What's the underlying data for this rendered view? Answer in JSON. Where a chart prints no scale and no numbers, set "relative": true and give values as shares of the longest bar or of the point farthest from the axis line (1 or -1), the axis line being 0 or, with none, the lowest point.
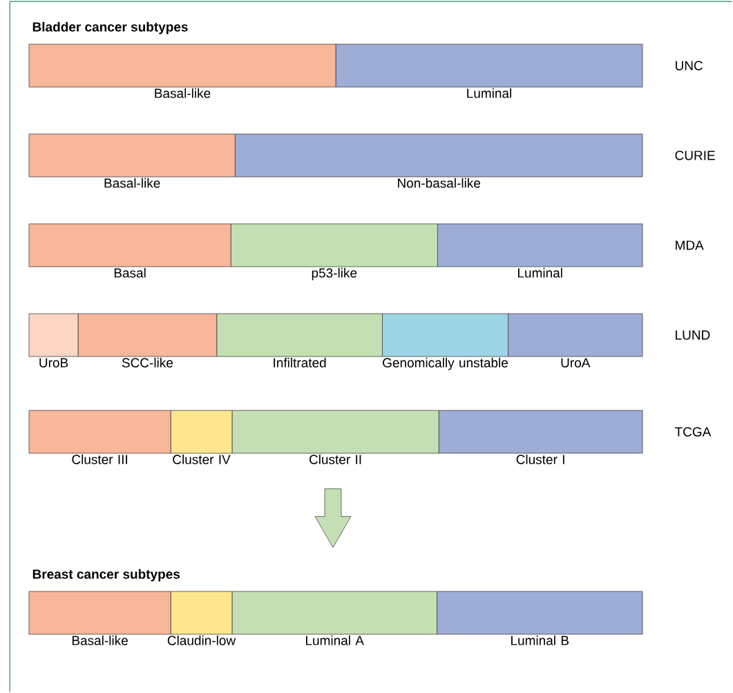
{
  "chart_data": [
    {
      "type": "bar",
      "orientation": "horizontal",
      "stacked": true,
      "relative": true,
      "title": "Bladder cancer subtypes",
      "categories": [
        "UNC"
      ],
      "series": [
        {
          "name": "Basal-like",
          "color": "#f8b69a",
          "values": [
            0.5
          ]
        },
        {
          "name": "Luminal",
          "color": "#9dadd6",
          "values": [
            0.5
          ]
        }
      ]
    },
    {
      "type": "bar",
      "orientation": "horizontal",
      "stacked": true,
      "relative": true,
      "categories": [
        "CURIE"
      ],
      "series": [
        {
          "name": "Basal-like",
          "color": "#f8b69a",
          "values": [
            0.336
          ]
        },
        {
          "name": "Non-basal-like",
          "color": "#9dadd6",
          "values": [
            0.664
          ]
        }
      ]
    },
    {
      "type": "bar",
      "orientation": "horizontal",
      "stacked": true,
      "relative": true,
      "categories": [
        "MDA"
      ],
      "series": [
        {
          "name": "Basal",
          "color": "#f8b69a",
          "values": [
            0.329
          ]
        },
        {
          "name": "p53-like",
          "color": "#c5dfb4",
          "values": [
            0.337
          ]
        },
        {
          "name": "Luminal",
          "color": "#9dadd6",
          "values": [
            0.334
          ]
        }
      ]
    },
    {
      "type": "bar",
      "orientation": "horizontal",
      "stacked": true,
      "relative": true,
      "categories": [
        "LUND"
      ],
      "series": [
        {
          "name": "UroB",
          "color": "#fdd5c3",
          "values": [
            0.08
          ]
        },
        {
          "name": "SCC-like",
          "color": "#f8b69a",
          "values": [
            0.226
          ]
        },
        {
          "name": "Infiltrated",
          "color": "#c5dfb4",
          "values": [
            0.27
          ]
        },
        {
          "name": "Genomically unstable",
          "color": "#9dd5e4",
          "values": [
            0.205
          ]
        },
        {
          "name": "UroA",
          "color": "#9dadd6",
          "values": [
            0.219
          ]
        }
      ]
    },
    {
      "type": "bar",
      "orientation": "horizontal",
      "stacked": true,
      "relative": true,
      "categories": [
        "TCGA"
      ],
      "series": [
        {
          "name": "Cluster III",
          "color": "#f8b69a",
          "values": [
            0.231
          ]
        },
        {
          "name": "Cluster IV",
          "color": "#fde68e",
          "values": [
            0.1
          ]
        },
        {
          "name": "Cluster II",
          "color": "#c5dfb4",
          "values": [
            0.337
          ]
        },
        {
          "name": "Cluster I",
          "color": "#9dadd6",
          "values": [
            0.332
          ]
        }
      ]
    },
    {
      "type": "bar",
      "orientation": "horizontal",
      "stacked": true,
      "relative": true,
      "title": "Breast cancer subtypes",
      "categories": [
        null
      ],
      "series": [
        {
          "name": "Basal-like",
          "color": "#f8b69a",
          "values": [
            0.231
          ]
        },
        {
          "name": "Claudin-low",
          "color": "#fde68e",
          "values": [
            0.1
          ]
        },
        {
          "name": "Luminal A",
          "color": "#c5dfb4",
          "values": [
            0.334
          ]
        },
        {
          "name": "Luminal B",
          "color": "#9dadd6",
          "values": [
            0.335
          ]
        }
      ]
    }
  ]
}
